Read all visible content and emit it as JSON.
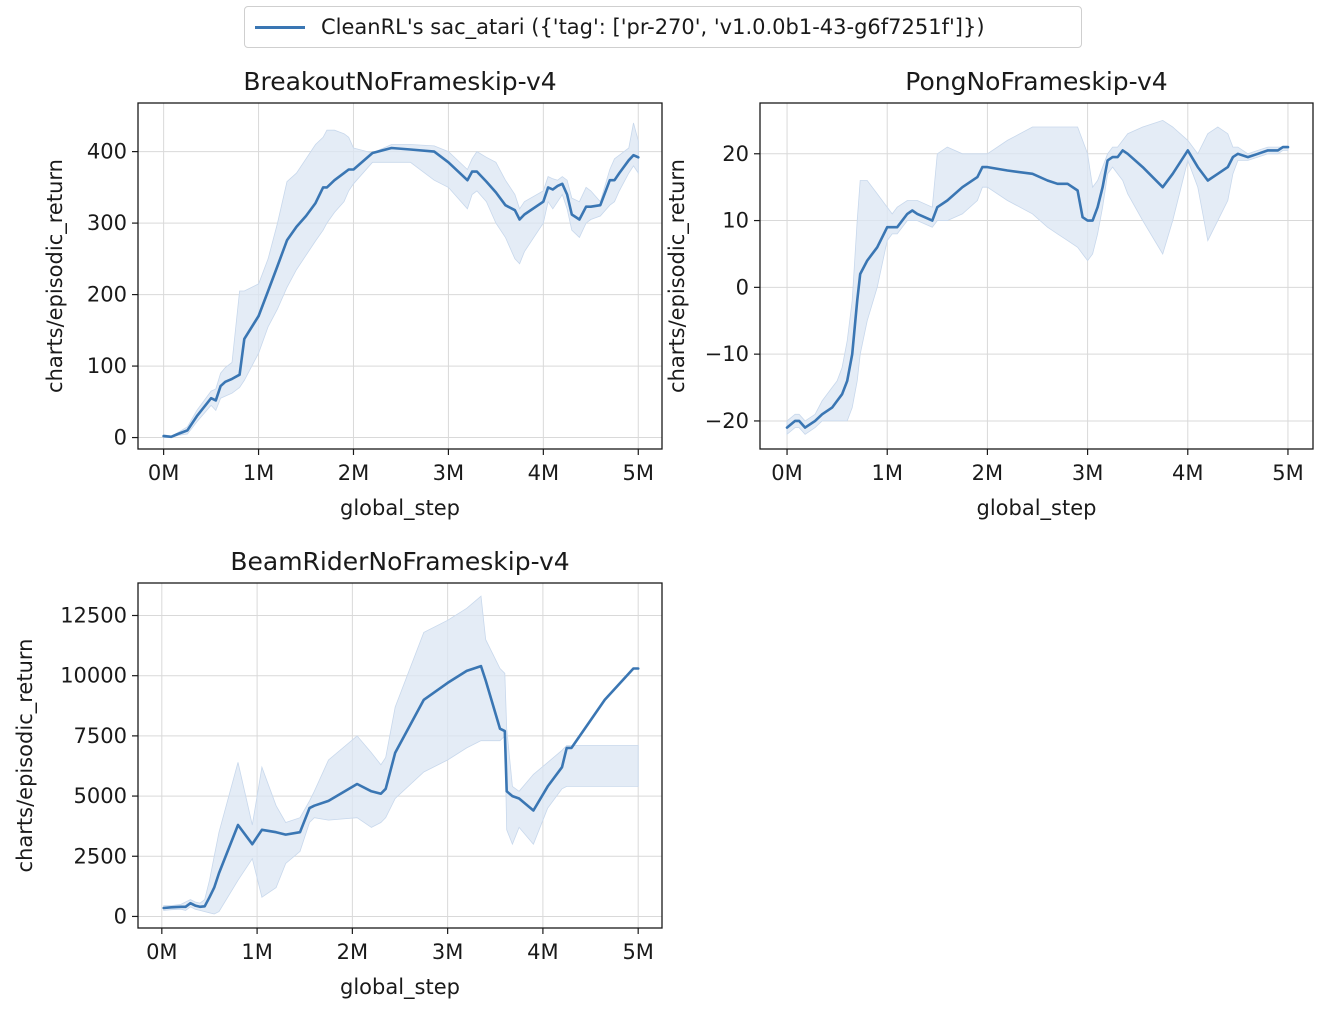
{
  "legend": {
    "label": "CleanRL's sac_atari ({'tag': ['pr-270', 'v1.0.0b1-43-g6f7251f']})",
    "color": "#3a76b3"
  },
  "style": {
    "line_color": "#3a76b3",
    "band_color": "#dbe6f3",
    "grid_color": "#d9d9d9"
  },
  "chart_data": [
    {
      "type": "line",
      "title": "BreakoutNoFrameskip-v4",
      "xlabel": "global_step",
      "ylabel": "charts/episodic_return",
      "xlim": [
        -0.27,
        5.25
      ],
      "ylim": [
        -16,
        468
      ],
      "xticks": [
        0,
        1,
        2,
        3,
        4,
        5
      ],
      "xtick_labels": [
        "0M",
        "1M",
        "2M",
        "3M",
        "4M",
        "5M"
      ],
      "yticks": [
        0,
        100,
        200,
        300,
        400
      ],
      "ytick_labels": [
        "0",
        "100",
        "200",
        "300",
        "400"
      ],
      "grid": true,
      "series": [
        {
          "name": "CleanRL's sac_atari ({'tag': ['pr-270', 'v1.0.0b1-43-g6f7251f']})",
          "x": [
            0,
            0.08,
            0.15,
            0.25,
            0.35,
            0.5,
            0.55,
            0.6,
            0.65,
            0.72,
            0.8,
            0.85,
            1.0,
            1.1,
            1.2,
            1.3,
            1.4,
            1.5,
            1.6,
            1.68,
            1.72,
            1.8,
            1.9,
            1.95,
            2.0,
            2.2,
            2.4,
            2.6,
            2.85,
            3.0,
            3.2,
            3.25,
            3.3,
            3.4,
            3.5,
            3.6,
            3.7,
            3.75,
            3.8,
            4.0,
            4.05,
            4.1,
            4.15,
            4.2,
            4.25,
            4.3,
            4.38,
            4.45,
            4.5,
            4.6,
            4.7,
            4.75,
            4.8,
            4.9,
            4.95,
            5.0
          ],
          "y": [
            2,
            1,
            5,
            10,
            30,
            55,
            52,
            72,
            78,
            82,
            88,
            138,
            170,
            205,
            240,
            276,
            295,
            310,
            328,
            350,
            350,
            360,
            370,
            375,
            375,
            398,
            405,
            403,
            400,
            385,
            360,
            372,
            372,
            358,
            343,
            325,
            318,
            305,
            312,
            330,
            350,
            347,
            352,
            355,
            340,
            312,
            305,
            323,
            323,
            325,
            360,
            360,
            370,
            388,
            395,
            392
          ],
          "band_upper": [
            4,
            2,
            7,
            15,
            38,
            65,
            68,
            90,
            98,
            105,
            205,
            205,
            215,
            250,
            300,
            358,
            370,
            390,
            410,
            420,
            430,
            430,
            425,
            420,
            405,
            398,
            410,
            410,
            408,
            400,
            375,
            390,
            400,
            392,
            385,
            360,
            340,
            320,
            330,
            345,
            365,
            362,
            360,
            365,
            360,
            335,
            330,
            350,
            345,
            330,
            375,
            390,
            395,
            405,
            440,
            415
          ],
          "band_lower": [
            0,
            0,
            3,
            5,
            22,
            45,
            38,
            55,
            58,
            62,
            70,
            80,
            118,
            155,
            180,
            210,
            235,
            255,
            275,
            290,
            300,
            315,
            330,
            345,
            355,
            385,
            385,
            385,
            360,
            350,
            320,
            340,
            345,
            330,
            300,
            280,
            250,
            243,
            260,
            300,
            330,
            320,
            330,
            340,
            320,
            290,
            280,
            300,
            305,
            310,
            325,
            330,
            345,
            370,
            380,
            370
          ]
        }
      ]
    },
    {
      "type": "line",
      "title": "PongNoFrameskip-v4",
      "xlabel": "global_step",
      "ylabel": "charts/episodic_return",
      "xlim": [
        -0.27,
        5.25
      ],
      "ylim": [
        -24.2,
        27.6
      ],
      "xticks": [
        0,
        1,
        2,
        3,
        4,
        5
      ],
      "xtick_labels": [
        "0M",
        "1M",
        "2M",
        "3M",
        "4M",
        "5M"
      ],
      "yticks": [
        -20,
        -10,
        0,
        10,
        20
      ],
      "ytick_labels": [
        "−20",
        "−10",
        "0",
        "10",
        "20"
      ],
      "grid": true,
      "series": [
        {
          "name": "CleanRL's sac_atari ({'tag': ['pr-270', 'v1.0.0b1-43-g6f7251f']})",
          "x": [
            0,
            0.08,
            0.12,
            0.18,
            0.28,
            0.35,
            0.45,
            0.5,
            0.55,
            0.6,
            0.65,
            0.7,
            0.73,
            0.8,
            0.9,
            1.0,
            1.05,
            1.1,
            1.2,
            1.25,
            1.3,
            1.45,
            1.5,
            1.6,
            1.75,
            1.9,
            1.95,
            2.0,
            2.2,
            2.45,
            2.6,
            2.7,
            2.8,
            2.9,
            2.95,
            3.0,
            3.05,
            3.1,
            3.15,
            3.2,
            3.25,
            3.3,
            3.35,
            3.4,
            3.55,
            3.75,
            3.85,
            4.0,
            4.1,
            4.2,
            4.3,
            4.4,
            4.45,
            4.5,
            4.6,
            4.7,
            4.8,
            4.9,
            4.95,
            5.0
          ],
          "y": [
            -21,
            -20,
            -20,
            -21,
            -20,
            -19,
            -18,
            -17,
            -16,
            -14,
            -10,
            -2,
            2,
            4,
            6,
            9,
            9,
            9,
            11,
            11.5,
            11,
            10,
            12,
            13,
            15,
            16.5,
            18,
            18,
            17.5,
            17,
            16,
            15.5,
            15.5,
            14.5,
            10.5,
            10,
            10,
            12,
            15,
            19,
            19.5,
            19.5,
            20.5,
            20,
            18,
            15,
            17,
            20.5,
            18,
            16,
            17,
            18,
            19.5,
            20,
            19.5,
            20,
            20.5,
            20.5,
            21,
            21
          ],
          "band_upper": [
            -20,
            -19,
            -19,
            -20,
            -19,
            -17,
            -15,
            -14,
            -12,
            -8,
            -2,
            10,
            16,
            16,
            14,
            12,
            11,
            12,
            13,
            13,
            13,
            12,
            20,
            21,
            20,
            20,
            20,
            20,
            22,
            24,
            24,
            24,
            24,
            24,
            22,
            20,
            15,
            16,
            18,
            20,
            21,
            21,
            22,
            23,
            24,
            25,
            24,
            22,
            20,
            23,
            24,
            23,
            21,
            21,
            20,
            20.5,
            21,
            21,
            21,
            21
          ],
          "band_lower": [
            -22,
            -21,
            -21,
            -22,
            -21,
            -20,
            -20,
            -20,
            -20,
            -20,
            -18,
            -14,
            -10,
            -5,
            0,
            7,
            8,
            8,
            10,
            10,
            10,
            9,
            10,
            10,
            11,
            13,
            15,
            15,
            13,
            11,
            9,
            8,
            7,
            6,
            5,
            4,
            5,
            8,
            12,
            17,
            18,
            17,
            16,
            14,
            10,
            5,
            10,
            19,
            15,
            7,
            10,
            13,
            17,
            19,
            19,
            19.5,
            20,
            20,
            20.5,
            20.5
          ]
        }
      ]
    },
    {
      "type": "line",
      "title": "BeamRiderNoFrameskip-v4",
      "xlabel": "global_step",
      "ylabel": "charts/episodic_return",
      "xlim": [
        -0.25,
        5.25
      ],
      "ylim": [
        -480,
        13850
      ],
      "xticks": [
        0,
        1,
        2,
        3,
        4,
        5
      ],
      "xtick_labels": [
        "0M",
        "1M",
        "2M",
        "3M",
        "4M",
        "5M"
      ],
      "yticks": [
        0,
        2500,
        5000,
        7500,
        10000,
        12500
      ],
      "ytick_labels": [
        "0",
        "2500",
        "5000",
        "7500",
        "10000",
        "12500"
      ],
      "grid": true,
      "series": [
        {
          "name": "CleanRL's sac_atari ({'tag': ['pr-270', 'v1.0.0b1-43-g6f7251f']})",
          "x": [
            0.02,
            0.1,
            0.2,
            0.25,
            0.3,
            0.35,
            0.4,
            0.45,
            0.5,
            0.55,
            0.6,
            0.8,
            0.95,
            1.05,
            1.2,
            1.3,
            1.45,
            1.55,
            1.6,
            1.75,
            2.05,
            2.2,
            2.3,
            2.35,
            2.45,
            2.75,
            3.0,
            3.2,
            3.35,
            3.4,
            3.55,
            3.6,
            3.62,
            3.68,
            3.75,
            3.9,
            4.05,
            4.2,
            4.25,
            4.3,
            4.65,
            4.95,
            5.0
          ],
          "y": [
            350,
            380,
            400,
            400,
            550,
            450,
            400,
            420,
            800,
            1200,
            1800,
            3800,
            3000,
            3600,
            3500,
            3400,
            3500,
            4500,
            4600,
            4800,
            5500,
            5200,
            5100,
            5300,
            6800,
            9000,
            9700,
            10200,
            10400,
            9800,
            7800,
            7700,
            5200,
            5000,
            4900,
            4400,
            5400,
            6200,
            7000,
            7000,
            9000,
            10300,
            10300
          ],
          "band_upper": [
            450,
            450,
            500,
            600,
            700,
            600,
            550,
            700,
            1500,
            2500,
            3500,
            6400,
            3800,
            6200,
            4600,
            3900,
            4100,
            4800,
            5200,
            6500,
            7500,
            6800,
            6300,
            6600,
            8700,
            11800,
            12300,
            12800,
            13300,
            11500,
            10300,
            10100,
            7800,
            5400,
            5200,
            5900,
            6400,
            6900,
            7100,
            7100,
            7100,
            7100,
            7100
          ],
          "band_lower": [
            250,
            280,
            300,
            250,
            400,
            300,
            250,
            200,
            150,
            100,
            200,
            1500,
            2400,
            800,
            1200,
            2200,
            2700,
            3900,
            4100,
            4000,
            4100,
            3700,
            3900,
            4100,
            4900,
            6000,
            6500,
            7000,
            7300,
            7300,
            7300,
            7500,
            3600,
            3000,
            3700,
            3000,
            4500,
            5300,
            5400,
            5400,
            5400,
            5400,
            5400
          ]
        }
      ]
    }
  ]
}
